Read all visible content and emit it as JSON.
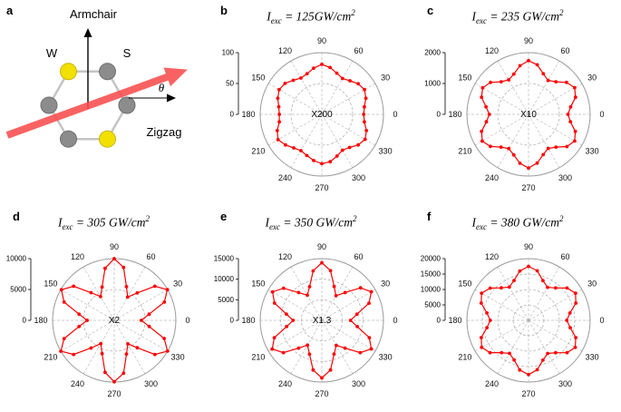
{
  "schematic": {
    "panel_label": "a",
    "armchair_label": "Armchair",
    "zigzag_label": "Zigzag",
    "w_label": "W",
    "s_label": "S",
    "theta_label": "θ",
    "colors": {
      "w_atom": "#f2e000",
      "s_atom": "#8c8c8c",
      "bond": "#c4c4c4",
      "arrow": "#f94d4d"
    }
  },
  "chart_config": {
    "angle_labels": [
      "0",
      "30",
      "60",
      "90",
      "120",
      "150",
      "180",
      "210",
      "240",
      "270",
      "300",
      "330"
    ],
    "point_color": "#ff0000",
    "grid_color": "#9a9a9a"
  },
  "chart_data": [
    {
      "id": "b",
      "type": "polar",
      "panel_label": "b",
      "title": {
        "var": "I",
        "sub": "exc",
        "rest": " = 125GW/cm",
        "sup": "2"
      },
      "center_label": "X200",
      "r_max": 100,
      "r_ticks": [
        "0",
        "50",
        "100"
      ],
      "theta_start_deg": 0,
      "theta_step_deg": 10,
      "values": [
        68,
        70,
        76,
        80,
        77,
        71,
        67,
        71,
        77,
        81,
        76,
        70,
        68,
        72,
        78,
        80,
        76,
        71,
        69,
        70,
        77,
        82,
        77,
        71,
        68,
        71,
        76,
        80,
        78,
        72,
        67,
        70,
        77,
        81,
        77,
        70
      ]
    },
    {
      "id": "c",
      "type": "polar",
      "panel_label": "c",
      "title": {
        "var": "I",
        "sub": "exc",
        "rest": " = 235 GW/cm",
        "sup": "2"
      },
      "center_label": "X10",
      "r_max": 2000,
      "r_ticks": [
        "0",
        "1000",
        "2000"
      ],
      "theta_start_deg": 0,
      "theta_step_deg": 10,
      "values": [
        1280,
        1390,
        1620,
        1730,
        1610,
        1380,
        1270,
        1400,
        1630,
        1740,
        1600,
        1390,
        1290,
        1380,
        1610,
        1720,
        1620,
        1400,
        1270,
        1390,
        1620,
        1735,
        1615,
        1385,
        1280,
        1400,
        1610,
        1740,
        1605,
        1390,
        1275,
        1385,
        1625,
        1730,
        1615,
        1380
      ]
    },
    {
      "id": "d",
      "type": "polar",
      "panel_label": "d",
      "title": {
        "var": "I",
        "sub": "exc",
        "rest": " = 305 GW/cm",
        "sup": "2"
      },
      "center_label": "X2",
      "r_max": 10000,
      "r_ticks": [
        "0",
        "5000",
        "10000"
      ],
      "theta_start_deg": 0,
      "theta_step_deg": 10,
      "values": [
        4400,
        5750,
        8650,
        9950,
        8600,
        5800,
        4350,
        5800,
        8700,
        10000,
        8550,
        5750,
        4450,
        5850,
        8600,
        9900,
        8650,
        5800,
        4400,
        5800,
        8650,
        10000,
        8600,
        5850,
        4350,
        5750,
        8550,
        9950,
        8700,
        5800,
        4400,
        5800,
        8600,
        9980,
        8620,
        5760
      ]
    },
    {
      "id": "e",
      "type": "polar",
      "panel_label": "e",
      "title": {
        "var": "I",
        "sub": "exc",
        "rest": " = 350 GW/cm",
        "sup": "2"
      },
      "center_label": "X1.3",
      "r_max": 15000,
      "r_ticks": [
        "0",
        "5000",
        "10000",
        "15000"
      ],
      "theta_start_deg": 0,
      "theta_step_deg": 10,
      "values": [
        7000,
        8700,
        12200,
        13900,
        12300,
        8800,
        6900,
        8750,
        12250,
        14000,
        12200,
        8700,
        7050,
        8800,
        12150,
        13850,
        12250,
        8750,
        7000,
        8700,
        12300,
        13950,
        12200,
        8800,
        6950,
        8750,
        12250,
        14000,
        12250,
        8700,
        7000,
        8800,
        12200,
        13900,
        12300,
        8750
      ]
    },
    {
      "id": "f",
      "type": "polar",
      "panel_label": "f",
      "title": {
        "var": "I",
        "sub": "exc",
        "rest": " = 380 GW/cm",
        "sup": "2"
      },
      "center_label": "",
      "r_max": 20000,
      "r_ticks": [
        "0",
        "5000",
        "10000",
        "15000",
        "20000"
      ],
      "theta_start_deg": 0,
      "theta_step_deg": 10,
      "values": [
        12400,
        13650,
        16350,
        17600,
        16300,
        13700,
        12350,
        13700,
        16300,
        17500,
        16250,
        13750,
        12450,
        13750,
        16250,
        17600,
        16350,
        13700,
        12400,
        13700,
        16300,
        17550,
        16300,
        13650,
        12350,
        13650,
        16350,
        17600,
        16250,
        13700,
        12400,
        13700,
        16300,
        17500,
        16300,
        13750
      ]
    }
  ]
}
